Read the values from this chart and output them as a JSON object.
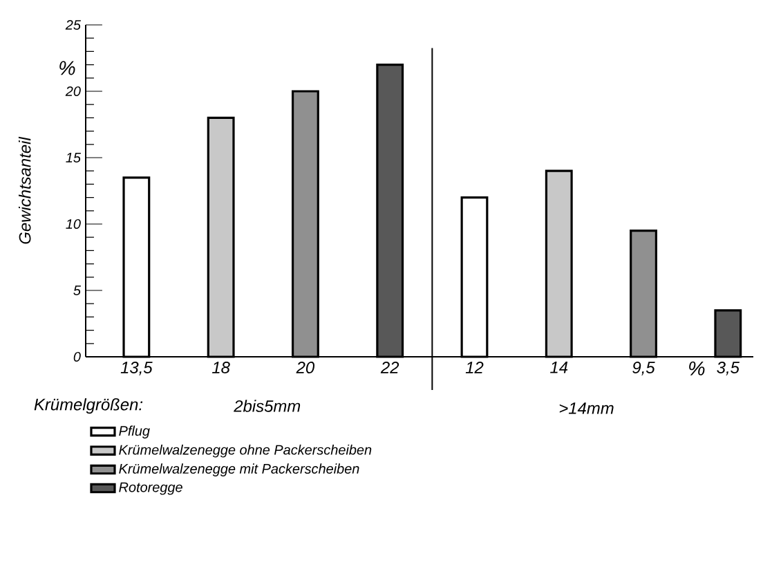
{
  "chart_data": {
    "type": "bar",
    "ylabel": "Gewichtsanteil",
    "xlabel": "Krümelgrößen:",
    "categories": [
      null,
      null,
      null,
      null,
      null,
      null,
      null,
      null
    ],
    "series": [
      {
        "name": "Pflug",
        "color": "#ffffff",
        "values": [
          13.5,
          null,
          null,
          null,
          12,
          null,
          null,
          null
        ],
        "value_labels": [
          "13,5",
          null,
          null,
          null,
          "12",
          null,
          null,
          null
        ]
      },
      {
        "name": "Krümelwalzenegge ohne Packerscheiben",
        "color": "#c8c8c8",
        "values": [
          null,
          18,
          null,
          null,
          null,
          14,
          null,
          null
        ],
        "value_labels": [
          null,
          "18",
          null,
          null,
          null,
          "14",
          null,
          null
        ]
      },
      {
        "name": "Krümelwalzenegge mit Packerscheiben",
        "color": "#909090",
        "values": [
          null,
          null,
          20,
          null,
          null,
          null,
          9.5,
          null
        ],
        "value_labels": [
          null,
          null,
          "20",
          null,
          null,
          null,
          "9,5",
          null
        ]
      },
      {
        "name": "Rotoregge",
        "color": "#585858",
        "values": [
          null,
          null,
          null,
          22,
          null,
          null,
          null,
          3.5
        ],
        "value_labels": [
          null,
          null,
          null,
          "22",
          null,
          null,
          null,
          "3,5"
        ]
      }
    ],
    "annotations": [
      "%",
      "2bis5mm",
      ">14mm",
      "%"
    ],
    "ylim": [
      0,
      25
    ],
    "yticks": [
      0,
      5,
      10,
      15,
      20,
      25
    ],
    "grid": false,
    "legend": "bottom"
  }
}
